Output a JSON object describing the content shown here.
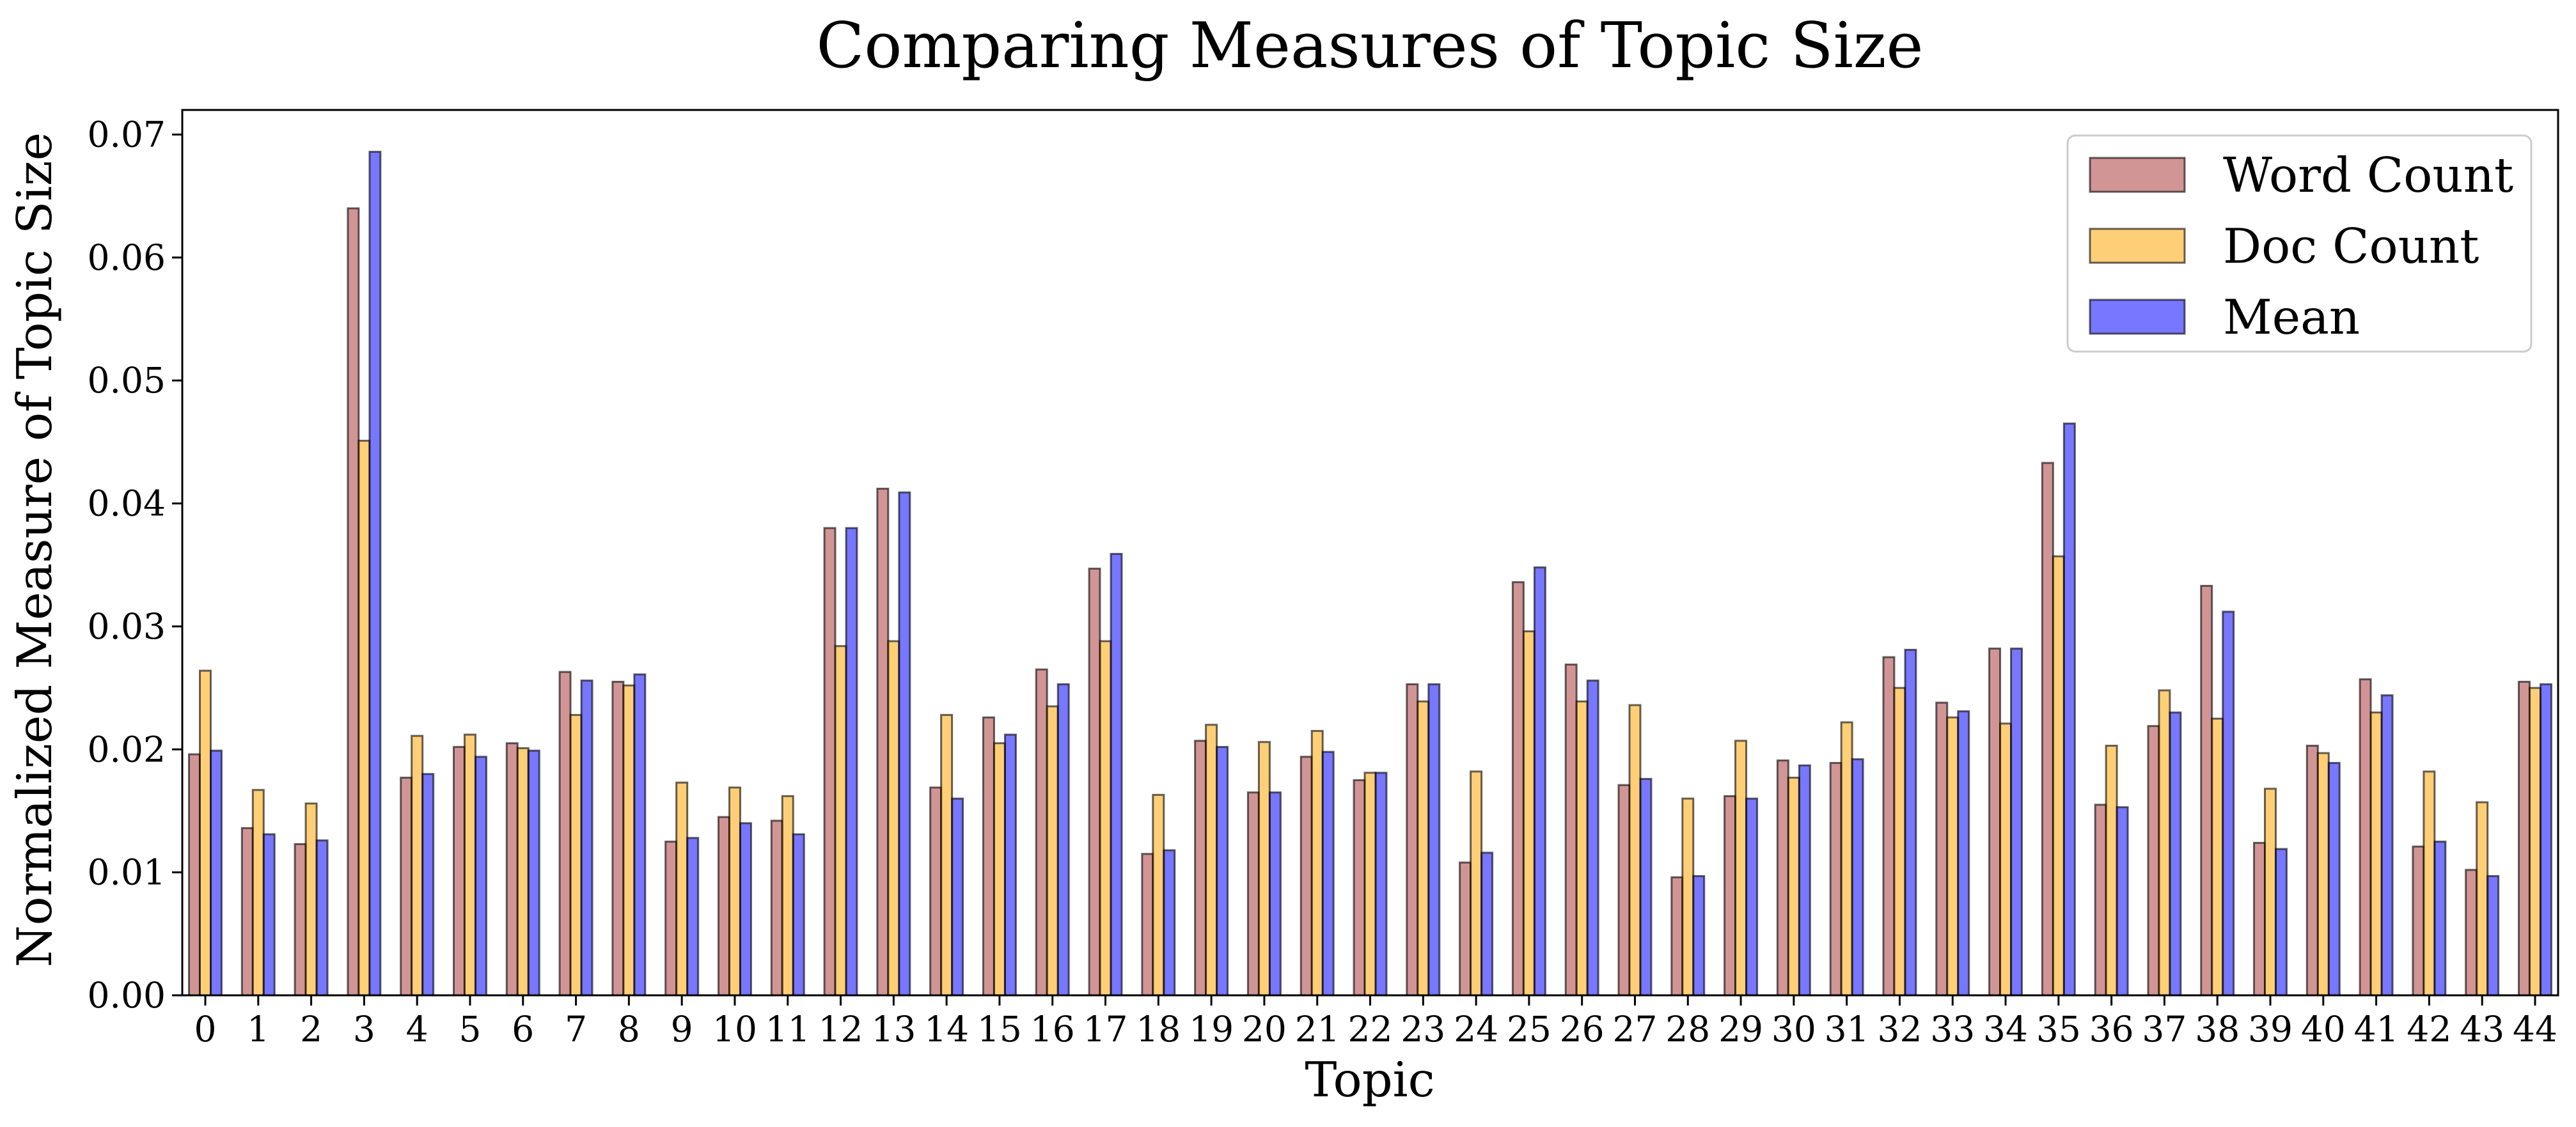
{
  "chart_data": {
    "type": "bar",
    "title": "Comparing Measures of Topic Size",
    "xlabel": "Topic",
    "ylabel": "Normalized Measure of Topic Size",
    "ylim": [
      0,
      0.072
    ],
    "yticks": [
      "0.00",
      "0.01",
      "0.02",
      "0.03",
      "0.04",
      "0.05",
      "0.06",
      "0.07"
    ],
    "grid": false,
    "legend_position": "top-right",
    "categories": [
      "0",
      "1",
      "2",
      "3",
      "4",
      "5",
      "6",
      "7",
      "8",
      "9",
      "10",
      "11",
      "12",
      "13",
      "14",
      "15",
      "16",
      "17",
      "18",
      "19",
      "20",
      "21",
      "22",
      "23",
      "24",
      "25",
      "26",
      "27",
      "28",
      "29",
      "30",
      "31",
      "32",
      "33",
      "34",
      "35",
      "36",
      "37",
      "38",
      "39",
      "40",
      "41",
      "42",
      "43",
      "44"
    ],
    "series": [
      {
        "name": "Word Count",
        "color": "#b85c5c",
        "values": [
          0.0196,
          0.0136,
          0.0123,
          0.064,
          0.0177,
          0.0202,
          0.0205,
          0.0263,
          0.0255,
          0.0125,
          0.0145,
          0.0142,
          0.038,
          0.0412,
          0.0169,
          0.0226,
          0.0265,
          0.0347,
          0.0115,
          0.0207,
          0.0165,
          0.0194,
          0.0175,
          0.0253,
          0.0108,
          0.0336,
          0.0269,
          0.0171,
          0.0096,
          0.0162,
          0.0191,
          0.0189,
          0.0275,
          0.0238,
          0.0282,
          0.0433,
          0.0155,
          0.0219,
          0.0333,
          0.0124,
          0.0203,
          0.0257,
          0.0121,
          0.0102,
          0.0255
        ]
      },
      {
        "name": "Doc Count",
        "color": "#ffb52e",
        "values": [
          0.0264,
          0.0167,
          0.0156,
          0.0451,
          0.0211,
          0.0212,
          0.0201,
          0.0228,
          0.0252,
          0.0173,
          0.0169,
          0.0162,
          0.0284,
          0.0288,
          0.0228,
          0.0205,
          0.0235,
          0.0288,
          0.0163,
          0.022,
          0.0206,
          0.0215,
          0.0181,
          0.0239,
          0.0182,
          0.0296,
          0.0239,
          0.0236,
          0.016,
          0.0207,
          0.0177,
          0.0222,
          0.025,
          0.0226,
          0.0221,
          0.0357,
          0.0203,
          0.0248,
          0.0225,
          0.0168,
          0.0197,
          0.023,
          0.0182,
          0.0157,
          0.025
        ]
      },
      {
        "name": "Mean",
        "color": "#2e2eff",
        "values": [
          0.0199,
          0.0131,
          0.0126,
          0.0686,
          0.018,
          0.0194,
          0.0199,
          0.0256,
          0.0261,
          0.0128,
          0.014,
          0.0131,
          0.038,
          0.0409,
          0.016,
          0.0212,
          0.0253,
          0.0359,
          0.0118,
          0.0202,
          0.0165,
          0.0198,
          0.0181,
          0.0253,
          0.0116,
          0.0348,
          0.0256,
          0.0176,
          0.0097,
          0.016,
          0.0187,
          0.0192,
          0.0281,
          0.0231,
          0.0282,
          0.0465,
          0.0153,
          0.023,
          0.0312,
          0.0119,
          0.0189,
          0.0244,
          0.0125,
          0.0097,
          0.0253
        ]
      }
    ]
  }
}
